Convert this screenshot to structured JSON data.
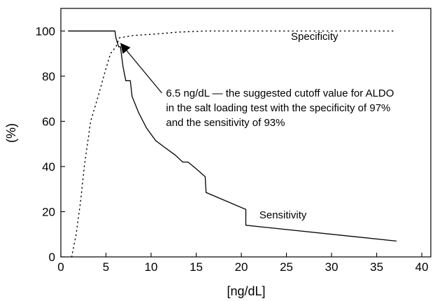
{
  "chart_data": {
    "type": "line",
    "title": "",
    "xlabel": "[ng/dL]",
    "ylabel": "(%)",
    "xlim": [
      0,
      41
    ],
    "ylim": [
      0,
      110
    ],
    "x_ticks": [
      0,
      5,
      10,
      15,
      20,
      25,
      30,
      35,
      40
    ],
    "y_ticks": [
      0,
      20,
      40,
      60,
      80,
      100
    ],
    "x_tick_labels": [
      "0",
      "5",
      "10",
      "15",
      "20",
      "25",
      "30",
      "35",
      "40"
    ],
    "y_tick_labels": [
      "0",
      "20",
      "40",
      "60",
      "80",
      "100"
    ],
    "grid": false,
    "series": [
      {
        "name": "Sensitivity",
        "style": "solid",
        "color": "#000000",
        "points": [
          [
            0.8,
            100
          ],
          [
            6.0,
            100
          ],
          [
            6.1,
            97
          ],
          [
            6.4,
            93
          ],
          [
            6.6,
            93
          ],
          [
            6.9,
            84
          ],
          [
            7.2,
            78
          ],
          [
            7.7,
            78
          ],
          [
            7.9,
            71
          ],
          [
            8.6,
            64
          ],
          [
            9.5,
            57
          ],
          [
            10.5,
            51.5
          ],
          [
            11.5,
            48.5
          ],
          [
            12.7,
            45
          ],
          [
            13.5,
            42
          ],
          [
            14.1,
            42
          ],
          [
            15.0,
            39
          ],
          [
            16.0,
            35.5
          ],
          [
            16.1,
            28.5
          ],
          [
            20.5,
            21
          ],
          [
            20.5,
            14
          ],
          [
            37.2,
            7
          ]
        ]
      },
      {
        "name": "Specificity",
        "style": "dotted",
        "color": "#000000",
        "points": [
          [
            1.2,
            0
          ],
          [
            1.7,
            10
          ],
          [
            2.2,
            25
          ],
          [
            2.6,
            40
          ],
          [
            3.3,
            60
          ],
          [
            4.2,
            72
          ],
          [
            4.9,
            82
          ],
          [
            5.5,
            90
          ],
          [
            6.1,
            93
          ],
          [
            6.5,
            97
          ],
          [
            8.0,
            98
          ],
          [
            10.0,
            98.5
          ],
          [
            13.0,
            99.5
          ],
          [
            16.0,
            100
          ],
          [
            37.0,
            100
          ]
        ]
      }
    ],
    "annotations": [
      {
        "lines": [
          "6.5 ng/dL — the suggested cutoff value for ALDO",
          "in the salt loading test with the specificity of 97%",
          "and the sensitivity of 93%"
        ],
        "arrow_to": [
          6.5,
          95
        ],
        "text_at": [
          11.5,
          71
        ]
      }
    ],
    "series_labels": [
      {
        "text": "Specificity",
        "at": [
          25.5,
          96
        ]
      },
      {
        "text": "Sensitivity",
        "at": [
          22.0,
          17
        ]
      }
    ]
  }
}
